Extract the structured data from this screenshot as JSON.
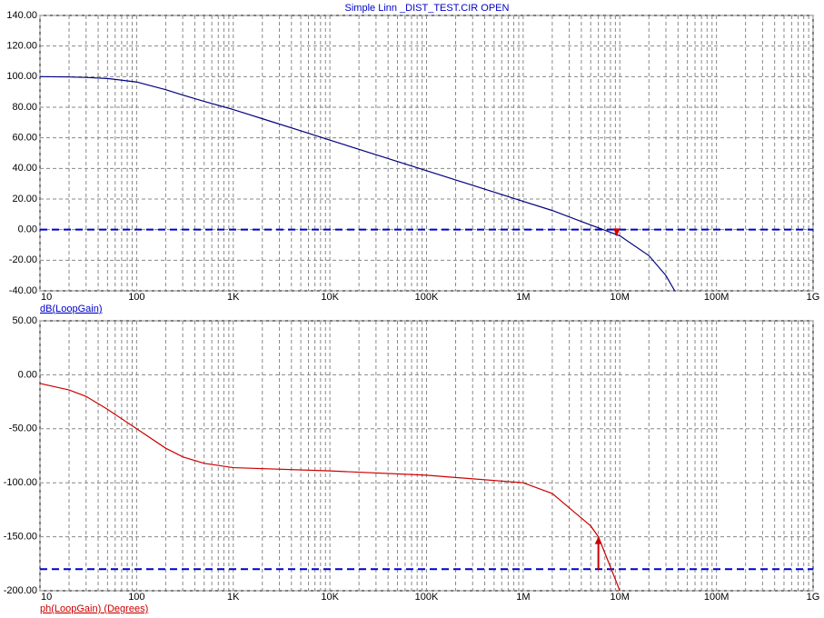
{
  "chart_data": [
    {
      "type": "line",
      "title": "Simple Linn _DIST_TEST.CIR OPEN",
      "log_x": true,
      "grid": true,
      "minor_grid": true,
      "x": [
        10,
        20,
        30,
        50,
        100,
        200,
        300,
        500,
        1000,
        2000,
        5000,
        10000,
        100000,
        1000000,
        2000000,
        5000000,
        10000000,
        20000000,
        30000000,
        37000000
      ],
      "series": [
        {
          "name": "dB(LoopGain)",
          "color": "#000080",
          "values": [
            100,
            99.8,
            99.5,
            98.8,
            96.5,
            91.5,
            88,
            83.8,
            78.5,
            72.5,
            64.6,
            58.5,
            38.5,
            18.5,
            12.5,
            3,
            -4,
            -17,
            -30,
            -40
          ]
        }
      ],
      "label_color": "#0000cc",
      "hline": 0,
      "hline_color": "#0000cc",
      "cursor": {
        "x": 9300000,
        "y": -4
      },
      "cursor_color": "#cc0000",
      "xlim": [
        10,
        1000000000
      ],
      "xticks": [
        10,
        100,
        {
          "value": 1000,
          "label": "1K"
        },
        {
          "value": 10000,
          "label": "10K"
        },
        {
          "value": 100000,
          "label": "100K"
        },
        {
          "value": 1000000,
          "label": "1M"
        },
        {
          "value": 10000000,
          "label": "10M"
        },
        {
          "value": 100000000,
          "label": "100M"
        },
        {
          "value": 1000000000,
          "label": "1G"
        }
      ],
      "ylim": [
        -40,
        140
      ],
      "yticks": [
        {
          "value": -40,
          "label": "-40.00"
        },
        {
          "value": -20,
          "label": "-20.00"
        },
        {
          "value": 0,
          "label": "0.00"
        },
        {
          "value": 20,
          "label": "20.00"
        },
        {
          "value": 40,
          "label": "40.00"
        },
        {
          "value": 60,
          "label": "60.00"
        },
        {
          "value": 80,
          "label": "80.00"
        },
        {
          "value": 100,
          "label": "100.00"
        },
        {
          "value": 120,
          "label": "120.00"
        },
        {
          "value": 140,
          "label": "140.00"
        }
      ]
    },
    {
      "type": "line",
      "log_x": true,
      "grid": true,
      "minor_grid": true,
      "x": [
        10,
        20,
        30,
        50,
        100,
        200,
        300,
        500,
        1000,
        10000,
        100000,
        1000000,
        2000000,
        5000000,
        6000000,
        8000000,
        10000000
      ],
      "series": [
        {
          "name": "ph(LoopGain) (Degrees)",
          "color": "#cc0000",
          "values": [
            -8,
            -14,
            -20,
            -32,
            -50,
            -68,
            -76,
            -82,
            -86,
            -89,
            -93,
            -100,
            -110,
            -140,
            -150,
            -178,
            -200
          ]
        }
      ],
      "label_color": "#cc0000",
      "hline": -180,
      "hline_color": "#0000cc",
      "cursor": {
        "x": 6000000,
        "y": -150
      },
      "cursor_color": "#cc0000",
      "xlim": [
        10,
        1000000000
      ],
      "xticks": [
        10,
        100,
        {
          "value": 1000,
          "label": "1K"
        },
        {
          "value": 10000,
          "label": "10K"
        },
        {
          "value": 100000,
          "label": "100K"
        },
        {
          "value": 1000000,
          "label": "1M"
        },
        {
          "value": 10000000,
          "label": "10M"
        },
        {
          "value": 100000000,
          "label": "100M"
        },
        {
          "value": 1000000000,
          "label": "1G"
        }
      ],
      "ylim": [
        -200,
        50
      ],
      "yticks": [
        {
          "value": -200,
          "label": "-200.00"
        },
        {
          "value": -150,
          "label": "-150.00"
        },
        {
          "value": -100,
          "label": "-100.00"
        },
        {
          "value": -50,
          "label": "-50.00"
        },
        {
          "value": 0,
          "label": "0.00"
        },
        {
          "value": 50,
          "label": "50.00"
        }
      ]
    }
  ]
}
